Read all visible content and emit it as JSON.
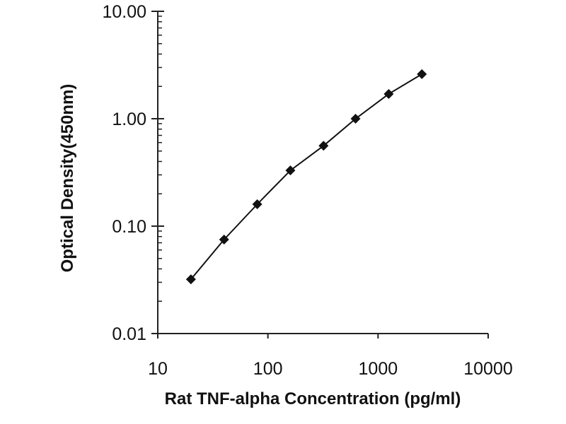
{
  "chart_data": {
    "type": "line",
    "title": "",
    "xlabel": "Rat TNF-alpha Concentration (pg/ml)",
    "ylabel": "Optical Density(450nm)",
    "xscale": "log",
    "yscale": "log",
    "xlim": [
      10,
      10000
    ],
    "ylim": [
      0.01,
      10
    ],
    "x_ticks": [
      {
        "value": 10,
        "label": "10"
      },
      {
        "value": 100,
        "label": "100"
      },
      {
        "value": 1000,
        "label": "1000"
      },
      {
        "value": 10000,
        "label": "10000"
      }
    ],
    "y_ticks": [
      {
        "value": 0.01,
        "label": "0.01"
      },
      {
        "value": 0.1,
        "label": "0.10"
      },
      {
        "value": 1,
        "label": "1.00"
      },
      {
        "value": 10,
        "label": "10.00"
      }
    ],
    "grid": false,
    "legend": "none",
    "series": [
      {
        "marker": "diamond",
        "color": "#111111",
        "x": [
          20,
          40,
          80,
          160,
          320,
          625,
          1250,
          2500
        ],
        "y": [
          0.032,
          0.075,
          0.16,
          0.33,
          0.56,
          1.0,
          1.7,
          2.6
        ]
      }
    ]
  }
}
